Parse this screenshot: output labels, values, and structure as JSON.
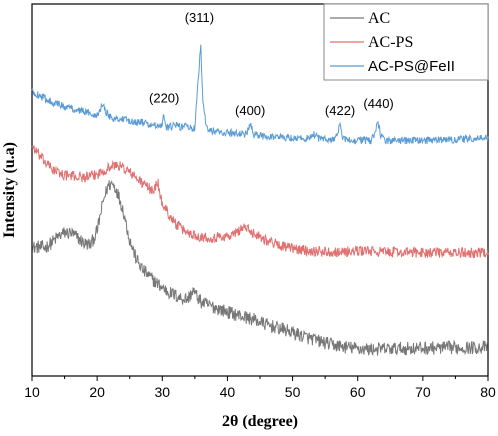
{
  "chart_data": {
    "type": "line",
    "title": "",
    "xlabel": "2θ (degree)",
    "ylabel": "Intensity (u.a)",
    "xlim": [
      10,
      80
    ],
    "xticks": [
      10,
      20,
      30,
      40,
      50,
      60,
      70,
      80
    ],
    "x_tick_labels": [
      "10",
      "20",
      "30",
      "40",
      "50",
      "60",
      "70",
      "80"
    ],
    "y_ticks_shown": false,
    "grid": false,
    "legend_position": "top-right",
    "series": [
      {
        "name": "AC",
        "color": "#777777",
        "noise": 1.8,
        "points": [
          [
            10,
            -5.5
          ],
          [
            11,
            -5.3
          ],
          [
            12,
            -5.5
          ],
          [
            13,
            -4.2
          ],
          [
            14,
            -2.5
          ],
          [
            15,
            -1.5
          ],
          [
            16,
            -1.6
          ],
          [
            17,
            -2.8
          ],
          [
            18,
            -4.4
          ],
          [
            19,
            -4.8
          ],
          [
            20,
            -1.0
          ],
          [
            21,
            7.5
          ],
          [
            21.7,
            11.2
          ],
          [
            22.3,
            11.8
          ],
          [
            23,
            10.0
          ],
          [
            24,
            4.5
          ],
          [
            25,
            -3.5
          ],
          [
            26,
            -8.5
          ],
          [
            27,
            -11.5
          ],
          [
            28,
            -13.2
          ],
          [
            29,
            -14.8
          ],
          [
            30,
            -16.2
          ],
          [
            31,
            -17.5
          ],
          [
            32,
            -18.3
          ],
          [
            33,
            -19.2
          ],
          [
            34,
            -19.2
          ],
          [
            34.7,
            -17.0
          ],
          [
            35.4,
            -18.8
          ],
          [
            36,
            -20.2
          ],
          [
            38,
            -21.5
          ],
          [
            40,
            -22.8
          ],
          [
            42,
            -23.8
          ],
          [
            44,
            -24.8
          ],
          [
            46,
            -26.2
          ],
          [
            48,
            -27.2
          ],
          [
            50,
            -28.3
          ],
          [
            52,
            -29.5
          ],
          [
            54,
            -30.6
          ],
          [
            56,
            -31.6
          ],
          [
            58,
            -32.2
          ],
          [
            60,
            -32.6
          ],
          [
            62,
            -32.8
          ],
          [
            65,
            -32.7
          ],
          [
            70,
            -32.5
          ],
          [
            75,
            -32.4
          ],
          [
            80,
            -32.3
          ]
        ]
      },
      {
        "name": "AC-PS",
        "color": "#e07070",
        "noise": 1.4,
        "points": [
          [
            10,
            22.0
          ],
          [
            11,
            19.5
          ],
          [
            12,
            17.5
          ],
          [
            13,
            15.8
          ],
          [
            14,
            14.7
          ],
          [
            15,
            14.0
          ],
          [
            16,
            13.8
          ],
          [
            17,
            13.6
          ],
          [
            18,
            13.4
          ],
          [
            19,
            13.6
          ],
          [
            20,
            14.2
          ],
          [
            21,
            15.2
          ],
          [
            22,
            16.2
          ],
          [
            23,
            16.7
          ],
          [
            24,
            16.0
          ],
          [
            25,
            14.8
          ],
          [
            26,
            13.2
          ],
          [
            27,
            11.8
          ],
          [
            28,
            10.5
          ],
          [
            28.8,
            10.0
          ],
          [
            29.3,
            12.5
          ],
          [
            29.6,
            8.6
          ],
          [
            30,
            6.5
          ],
          [
            31,
            3.5
          ],
          [
            32,
            1.0
          ],
          [
            33,
            -0.5
          ],
          [
            34,
            -1.5
          ],
          [
            35,
            -2.2
          ],
          [
            36,
            -2.5
          ],
          [
            37,
            -2.8
          ],
          [
            38,
            -2.8
          ],
          [
            39,
            -2.5
          ],
          [
            40,
            -2.5
          ],
          [
            41,
            -2.0
          ],
          [
            42,
            -0.5
          ],
          [
            42.6,
            0.2
          ],
          [
            43.2,
            -0.8
          ],
          [
            44,
            -1.6
          ],
          [
            45,
            -2.4
          ],
          [
            46,
            -3.5
          ],
          [
            48,
            -4.8
          ],
          [
            50,
            -5.8
          ],
          [
            52,
            -6.2
          ],
          [
            54,
            -6.5
          ],
          [
            56,
            -6.6
          ],
          [
            58,
            -6.6
          ],
          [
            60,
            -6.5
          ],
          [
            61,
            -6.2
          ],
          [
            62,
            -6.5
          ],
          [
            65,
            -6.7
          ],
          [
            70,
            -6.8
          ],
          [
            75,
            -6.9
          ],
          [
            80,
            -6.9
          ]
        ]
      },
      {
        "name": "AC-PS@FeII",
        "color": "#5b9bd5",
        "noise": 1.0,
        "points": [
          [
            10,
            36.5
          ],
          [
            11,
            35.5
          ],
          [
            12,
            34.6
          ],
          [
            13,
            33.8
          ],
          [
            14,
            33.0
          ],
          [
            15,
            32.5
          ],
          [
            16,
            32.0
          ],
          [
            17,
            31.5
          ],
          [
            18,
            31.1
          ],
          [
            19,
            30.6
          ],
          [
            20,
            30.2
          ],
          [
            20.8,
            33.0
          ],
          [
            21.4,
            31.0
          ],
          [
            22,
            29.6
          ],
          [
            23,
            29.2
          ],
          [
            24,
            28.9
          ],
          [
            25,
            28.6
          ],
          [
            26,
            28.3
          ],
          [
            27,
            28.1
          ],
          [
            28,
            27.6
          ],
          [
            29,
            27.2
          ],
          [
            30,
            27.0
          ],
          [
            30.2,
            30.0
          ],
          [
            30.5,
            27.0
          ],
          [
            31,
            26.8
          ],
          [
            32,
            27.5
          ],
          [
            33,
            26.8
          ],
          [
            33.5,
            28.0
          ],
          [
            34,
            26.6
          ],
          [
            35,
            26.4
          ],
          [
            35.5,
            39.5
          ],
          [
            35.9,
            49.2
          ],
          [
            36.2,
            35.0
          ],
          [
            36.7,
            28.0
          ],
          [
            37,
            26.0
          ],
          [
            38,
            25.8
          ],
          [
            39,
            25.6
          ],
          [
            40,
            25.4
          ],
          [
            41,
            25.3
          ],
          [
            42,
            25.1
          ],
          [
            43,
            25.0
          ],
          [
            43.5,
            28.0
          ],
          [
            44,
            24.8
          ],
          [
            45,
            24.6
          ],
          [
            46,
            24.5
          ],
          [
            48,
            24.2
          ],
          [
            50,
            24.0
          ],
          [
            52,
            23.8
          ],
          [
            53.5,
            25.0
          ],
          [
            54,
            23.7
          ],
          [
            56,
            23.6
          ],
          [
            57,
            24.5
          ],
          [
            57.2,
            28.0
          ],
          [
            57.6,
            24.5
          ],
          [
            58,
            23.5
          ],
          [
            60,
            23.4
          ],
          [
            62,
            23.3
          ],
          [
            62.8,
            26.0
          ],
          [
            63.1,
            28.0
          ],
          [
            63.5,
            25.0
          ],
          [
            64,
            23.3
          ],
          [
            66,
            23.3
          ],
          [
            68,
            23.3
          ],
          [
            70,
            23.3
          ],
          [
            72,
            23.4
          ],
          [
            74,
            23.5
          ],
          [
            76,
            23.6
          ],
          [
            78,
            23.8
          ],
          [
            80,
            24.0
          ]
        ]
      }
    ],
    "annotations": [
      {
        "text": "(220)",
        "x": 30.3,
        "y": 33.5
      },
      {
        "text": "(311)",
        "x": 35.7,
        "y": 55.2
      },
      {
        "text": "(400)",
        "x": 43.5,
        "y": 30.2
      },
      {
        "text": "(422)",
        "x": 57.3,
        "y": 30.2
      },
      {
        "text": "(440)",
        "x": 63.2,
        "y": 32.0
      }
    ]
  }
}
